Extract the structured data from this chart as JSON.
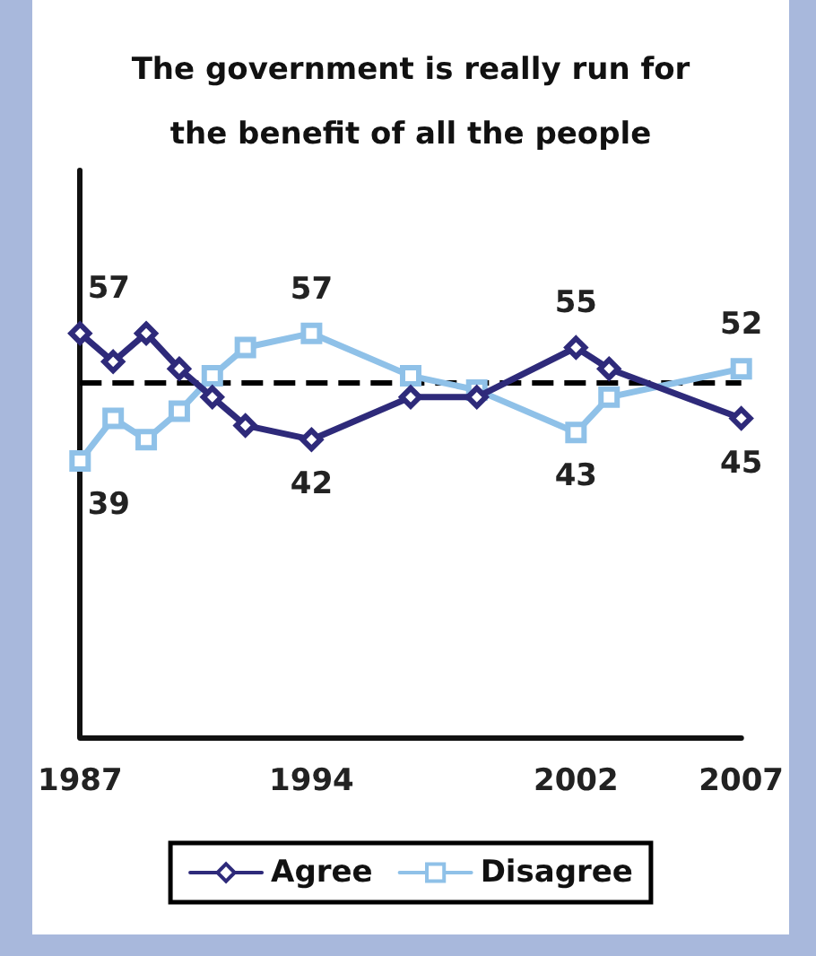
{
  "chart_data": {
    "type": "line",
    "title": "The government is really run for\nthe benefit of all the people",
    "x": [
      1987,
      1988,
      1989,
      1990,
      1991,
      1992,
      1994,
      1997,
      1999,
      2002,
      2003,
      2007
    ],
    "series": [
      {
        "name": "Agree",
        "color": "#2e2a7a",
        "marker": "diamond",
        "values": [
          57,
          53,
          57,
          52,
          48,
          44,
          42,
          48,
          48,
          55,
          52,
          45
        ],
        "value_labels": [
          "57",
          null,
          null,
          null,
          null,
          null,
          "42",
          null,
          null,
          "55",
          null,
          "45"
        ]
      },
      {
        "name": "Disagree",
        "color": "#8fc1e8",
        "marker": "square",
        "values": [
          39,
          45,
          42,
          46,
          51,
          55,
          57,
          51,
          49,
          43,
          48,
          52
        ],
        "value_labels": [
          "39",
          null,
          null,
          null,
          null,
          null,
          "57",
          null,
          null,
          "43",
          null,
          "52"
        ]
      }
    ],
    "xlim": [
      1987,
      2007
    ],
    "xticks": [
      1987,
      1994,
      2002,
      2007
    ],
    "ylim": [
      0,
      80
    ],
    "tick_labels": "x",
    "ref_lines": [
      {
        "axis": "y",
        "value": 50,
        "color": "#000000",
        "line_style": "dashed"
      }
    ],
    "grid": false,
    "legend": "bottom",
    "line_style": "solid"
  }
}
